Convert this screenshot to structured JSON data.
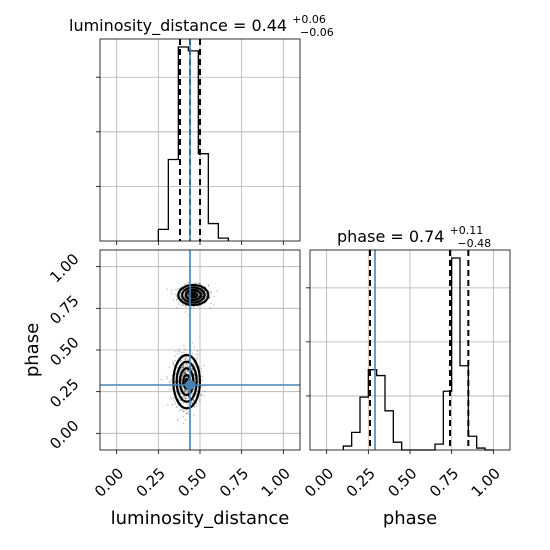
{
  "chart_data": {
    "type": "corner",
    "parameters": [
      "luminosity_distance",
      "phase"
    ],
    "truth_color": "#4682b4",
    "panels": [
      {
        "id": "luminosity_distance_hist",
        "type": "histogram",
        "title_text": "luminosity_distance = 0.44",
        "title_sup": "+0.06",
        "title_sub": "−0.06",
        "xlim": [
          -0.1,
          1.1
        ],
        "bin_edges": [
          0.25,
          0.31,
          0.37,
          0.43,
          0.49,
          0.55,
          0.61,
          0.67
        ],
        "counts": [
          0.06,
          0.42,
          1.0,
          0.98,
          0.45,
          0.09,
          0.015
        ],
        "quantiles": [
          0.38,
          0.44,
          0.5
        ],
        "truth": 0.44
      },
      {
        "id": "phase_hist",
        "type": "histogram",
        "title_text": "phase = 0.74",
        "title_sup": "+0.11",
        "title_sub": "−0.48",
        "xlim": [
          -0.1,
          1.1
        ],
        "bin_edges": [
          0.1,
          0.15,
          0.2,
          0.25,
          0.3,
          0.35,
          0.4,
          0.45,
          0.5,
          0.55,
          0.6,
          0.65,
          0.7,
          0.75,
          0.8,
          0.85,
          0.9,
          0.95,
          1.0
        ],
        "counts": [
          0.02,
          0.09,
          0.27,
          0.41,
          0.38,
          0.2,
          0.04,
          0.0,
          0.0,
          0.0,
          0.0,
          0.03,
          0.3,
          0.98,
          0.43,
          0.07,
          0.01,
          0.0
        ],
        "quantiles": [
          0.26,
          0.74,
          0.85
        ],
        "truth": 0.29
      },
      {
        "id": "phase_vs_luminosity_distance",
        "type": "2d-density",
        "xlim": [
          -0.1,
          1.1
        ],
        "ylim": [
          -0.1,
          1.1
        ],
        "modes": [
          {
            "x": 0.46,
            "y": 0.83,
            "spread_x": 0.045,
            "spread_y": 0.03
          },
          {
            "x": 0.42,
            "y": 0.31,
            "spread_x": 0.04,
            "spread_y": 0.08
          }
        ],
        "truth": {
          "x": 0.44,
          "y": 0.29
        }
      }
    ],
    "ticks": [
      0.0,
      0.25,
      0.5,
      0.75,
      1.0
    ],
    "tick_labels": [
      "0.00",
      "0.25",
      "0.50",
      "0.75",
      "1.00"
    ],
    "xlabels": [
      "luminosity_distance",
      "phase"
    ],
    "ylabel": "phase",
    "grid": true
  }
}
